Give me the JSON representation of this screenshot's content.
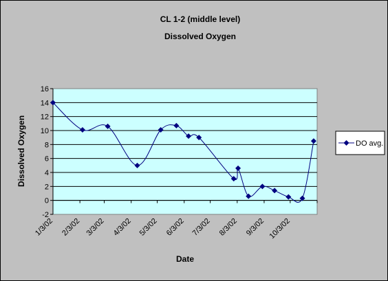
{
  "chart_data": {
    "type": "line",
    "title": "CL 1-2 (middle level)",
    "subtitle": "Dissolved Oxygen",
    "xlabel": "Date",
    "ylabel": "Dissolved Oxygen",
    "ylim": [
      -2,
      16
    ],
    "yticks": [
      -2,
      0,
      2,
      4,
      6,
      8,
      10,
      12,
      14,
      16
    ],
    "xlim": [
      "2002-01-03",
      "2002-11-03"
    ],
    "xtick_labels": [
      "1/3/02",
      "2/3/02",
      "3/3/02",
      "4/3/02",
      "5/3/02",
      "6/3/02",
      "7/3/02",
      "8/3/02",
      "9/3/02",
      "10/3/02"
    ],
    "xtick_dates": [
      "2002-01-03",
      "2002-02-03",
      "2002-03-03",
      "2002-04-03",
      "2002-05-03",
      "2002-06-03",
      "2002-07-03",
      "2002-08-03",
      "2002-09-03",
      "2002-10-03"
    ],
    "grid": true,
    "smooth": true,
    "legend_position": "right",
    "plot_background": "#ccffff",
    "series_color": "#000080",
    "series": [
      {
        "name": "DO avg.",
        "x": [
          "2002-01-03",
          "2002-02-06",
          "2002-03-07",
          "2002-04-10",
          "2002-05-07",
          "2002-05-25",
          "2002-06-08",
          "2002-06-20",
          "2002-07-30",
          "2002-08-04",
          "2002-08-16",
          "2002-09-01",
          "2002-09-15",
          "2002-10-01",
          "2002-10-17",
          "2002-10-30"
        ],
        "y": [
          14.0,
          10.1,
          10.6,
          5.0,
          10.1,
          10.7,
          9.2,
          9.0,
          3.1,
          4.6,
          0.6,
          2.0,
          1.4,
          0.5,
          0.3,
          8.5
        ]
      }
    ]
  }
}
